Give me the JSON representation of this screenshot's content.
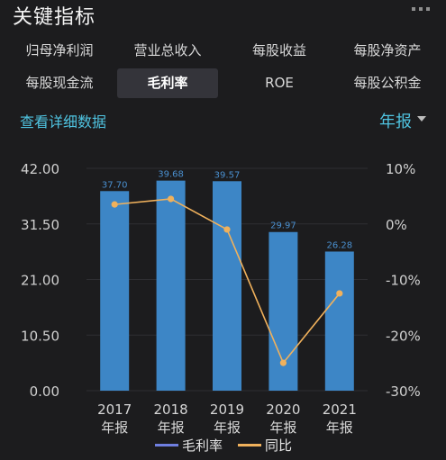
{
  "header": {
    "title": "关键指标",
    "menu_icon": "more-dots-icon"
  },
  "tabs": [
    {
      "label": "归母净利润",
      "active": false
    },
    {
      "label": "营业总收入",
      "active": false
    },
    {
      "label": "每股收益",
      "active": false
    },
    {
      "label": "每股净资产",
      "active": false
    },
    {
      "label": "每股现金流",
      "active": false
    },
    {
      "label": "毛利率",
      "active": true
    },
    {
      "label": "ROE",
      "active": false
    },
    {
      "label": "每股公积金",
      "active": false
    }
  ],
  "detail_link": "查看详细数据",
  "period_selector": {
    "value": "年报",
    "icon": "caret-down-icon"
  },
  "colors": {
    "bar": "#3d86c6",
    "line": "#f0b15c",
    "accent": "#4fc3e0",
    "legend_bar": "#6f7fe0"
  },
  "chart_data": {
    "type": "bar",
    "categories": [
      "2017\n年报",
      "2018\n年报",
      "2019\n年报",
      "2020\n年报",
      "2021\n年报"
    ],
    "category_years": [
      "2017",
      "2018",
      "2019",
      "2020",
      "2021"
    ],
    "category_suffix": "年报",
    "series": [
      {
        "name": "毛利率",
        "type": "bar",
        "axis": "left",
        "values": [
          37.7,
          39.68,
          39.57,
          29.97,
          26.28
        ],
        "labels": [
          "37.70",
          "39.68",
          "39.57",
          "29.97",
          "26.28"
        ]
      },
      {
        "name": "同比",
        "type": "line",
        "axis": "right",
        "values": [
          3.5,
          4.5,
          -1.0,
          -25.0,
          -12.5
        ]
      }
    ],
    "y_left": {
      "ticks": [
        "42.00",
        "31.50",
        "21.00",
        "10.50",
        "0.00"
      ],
      "range": [
        0,
        42
      ]
    },
    "y_right": {
      "ticks": [
        "10%",
        "0%",
        "-10%",
        "-20%",
        "-30%"
      ],
      "range": [
        -30,
        10
      ]
    },
    "legend": [
      "毛利率",
      "同比"
    ],
    "legend_position": "bottom"
  }
}
